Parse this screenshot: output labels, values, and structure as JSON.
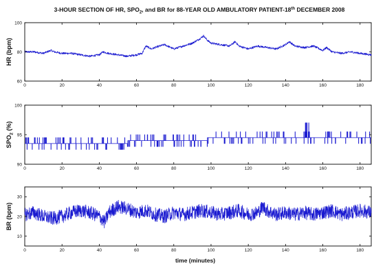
{
  "colors": {
    "trace": "#1a1ad0",
    "axis": "#000000",
    "background": "#ffffff"
  },
  "chart_data": [
    {
      "type": "line",
      "title": "3-HOUR SECTION OF HR, SPO2, and BR for 88-YEAR OLD AMBULATORY PATIENT-18th DECEMBER 2008",
      "ylabel": "HR (bpm)",
      "xlabel": "",
      "xlim": [
        0,
        186
      ],
      "ylim": [
        60,
        100
      ],
      "x_ticks": [
        0,
        20,
        40,
        60,
        80,
        100,
        120,
        140,
        160,
        180
      ],
      "y_ticks": [
        60,
        80,
        100
      ],
      "grid": false,
      "x": [
        0,
        5,
        10,
        14,
        16,
        20,
        25,
        30,
        35,
        40,
        42,
        45,
        50,
        55,
        60,
        63,
        65,
        68,
        70,
        75,
        80,
        85,
        90,
        94,
        96,
        98,
        100,
        105,
        110,
        113,
        115,
        120,
        125,
        130,
        135,
        140,
        142,
        145,
        150,
        155,
        160,
        162,
        165,
        170,
        175,
        180,
        186
      ],
      "values": [
        80,
        80,
        79,
        81,
        80,
        79,
        79,
        78,
        77,
        78,
        80,
        79,
        78,
        77,
        78,
        79,
        84,
        82,
        83,
        85,
        82,
        84,
        86,
        89,
        91,
        88,
        86,
        85,
        84,
        87,
        84,
        82,
        84,
        83,
        82,
        85,
        87,
        84,
        83,
        84,
        81,
        83,
        80,
        79,
        80,
        79,
        78
      ]
    },
    {
      "type": "line",
      "title": "",
      "ylabel": "SPO2 (%)",
      "xlabel": "",
      "xlim": [
        0,
        186
      ],
      "ylim": [
        90,
        100
      ],
      "x_ticks": [
        0,
        20,
        40,
        60,
        80,
        100,
        120,
        140,
        160,
        180
      ],
      "y_ticks": [
        90,
        95,
        100
      ],
      "grid": false,
      "x": [
        0,
        10,
        20,
        30,
        40,
        50,
        60,
        70,
        80,
        90,
        96,
        100,
        110,
        120,
        130,
        140,
        150,
        160,
        170,
        180,
        186
      ],
      "values": [
        93.5,
        93.5,
        93.5,
        93.5,
        93.5,
        93.5,
        94,
        94,
        94,
        94,
        94,
        94.5,
        94.5,
        94.5,
        94.5,
        94.5,
        94.5,
        94.5,
        94.5,
        94.5,
        94.5
      ]
    },
    {
      "type": "line",
      "title": "",
      "ylabel": "BR (bpm)",
      "xlabel": "time (minutes)",
      "xlim": [
        0,
        186
      ],
      "ylim": [
        5,
        35
      ],
      "x_ticks": [
        0,
        20,
        40,
        60,
        80,
        100,
        120,
        140,
        160,
        180
      ],
      "y_ticks": [
        10,
        20,
        30
      ],
      "grid": false,
      "x": [
        0,
        5,
        10,
        15,
        20,
        25,
        30,
        35,
        40,
        43,
        45,
        50,
        55,
        60,
        65,
        70,
        75,
        80,
        85,
        90,
        95,
        100,
        105,
        110,
        115,
        120,
        125,
        128,
        130,
        135,
        140,
        145,
        150,
        155,
        160,
        165,
        170,
        175,
        180,
        186
      ],
      "values": [
        21,
        22,
        20,
        19,
        20,
        22,
        23,
        22,
        20,
        17,
        22,
        25,
        24,
        22,
        23,
        21,
        20,
        22,
        21,
        22,
        23,
        22,
        21,
        22,
        23,
        21,
        22,
        25,
        23,
        21,
        22,
        21,
        22,
        21,
        22,
        23,
        21,
        22,
        23,
        22
      ]
    }
  ]
}
